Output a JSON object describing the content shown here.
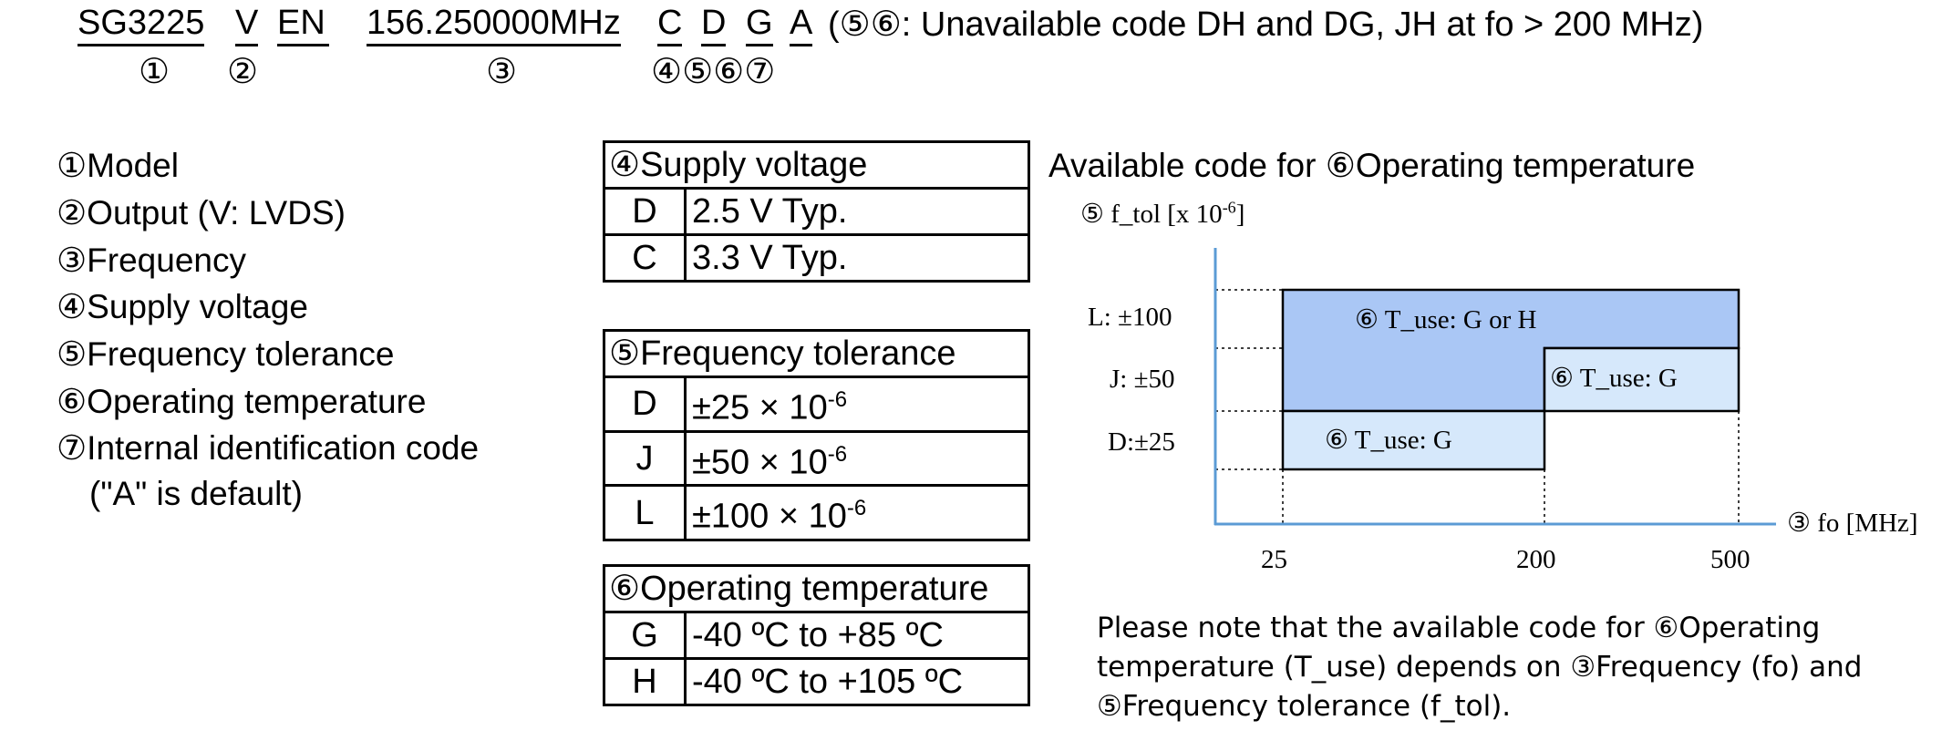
{
  "part_number": {
    "model": "SG3225",
    "output": "V",
    "suffix": "EN",
    "frequency": "156.250000MHz",
    "supply": "C",
    "tolerance": "D",
    "temperature": "G",
    "internal_code": "A",
    "note": "(⑤⑥: Unavailable code DH and DG, JH at fo > 200 MHz)",
    "markers": {
      "model": "①",
      "output": "②",
      "frequency": "③",
      "codes": "④⑤⑥⑦"
    }
  },
  "legend": [
    "①Model",
    "②Output (V: LVDS)",
    "③Frequency",
    "④Supply voltage",
    "⑤Frequency tolerance",
    "⑥Operating temperature",
    "⑦Internal identification code",
    "(\"A\" is default)"
  ],
  "supply_table": {
    "header": "④Supply voltage",
    "rows": [
      {
        "code": "D",
        "value": "2.5 V Typ."
      },
      {
        "code": "C",
        "value": "3.3 V Typ."
      }
    ]
  },
  "tolerance_table": {
    "header": "⑤Frequency tolerance",
    "rows": [
      {
        "code": "D",
        "base": "±25 × 10",
        "exp": "-6"
      },
      {
        "code": "J",
        "base": "±50 × 10",
        "exp": "-6"
      },
      {
        "code": "L",
        "base": "±100 × 10",
        "exp": "-6"
      }
    ]
  },
  "temperature_table": {
    "header": "⑥Operating temperature",
    "rows": [
      {
        "code": "G",
        "value": "-40 ºC to +85 ºC"
      },
      {
        "code": "H",
        "value": "-40 ºC to +105 ºC"
      }
    ]
  },
  "diagram": {
    "title": "Available code for ⑥Operating temperature",
    "y_axis_label": "⑤ f_tol [x 10",
    "y_axis_exp": "-6",
    "y_axis_close": "]",
    "x_axis_label": "③ fo [MHz]",
    "y_ticks": [
      "L: ±100",
      "J: ±50",
      "D:±25"
    ],
    "x_ticks": [
      "25",
      "200",
      "500"
    ],
    "regions": [
      {
        "label": "⑥ T_use: G or H",
        "fill": "#aac7f5"
      },
      {
        "label": "⑥ T_use: G",
        "fill": "#d6e8fb"
      },
      {
        "label": "⑥ T_use: G",
        "fill": "#d6e8fb"
      }
    ],
    "axis_color": "#5b9bd5"
  },
  "note": "Please note that the available code for ⑥Operating temperature (T_use) depends on ③Frequency (fo) and ⑤Frequency tolerance (f_tol)."
}
